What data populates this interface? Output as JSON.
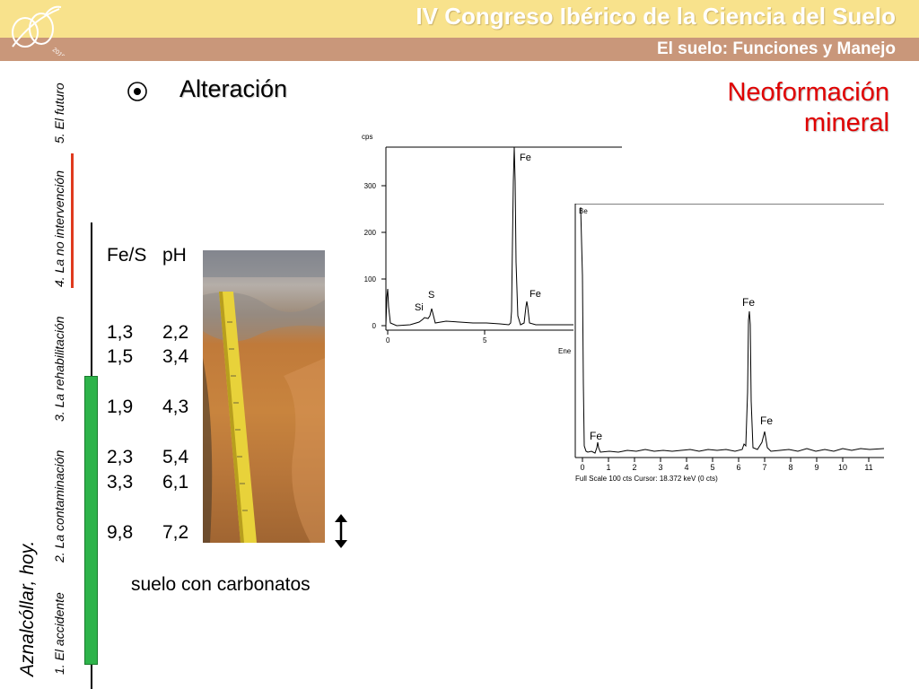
{
  "header": {
    "title": "IV Congreso Ibérico de la Ciencia del Suelo",
    "subtitle": "El suelo: Funciones y Manejo",
    "colors": {
      "band_top": "#f8e28c",
      "band_bottom": "#c9977a"
    }
  },
  "left_nav": {
    "heading": "Aznalcóllar, hoy.",
    "items": [
      "1. El accidente",
      "2. La contaminación",
      "3. La rehabilitación",
      "4. La no intervención",
      "5. El futuro"
    ],
    "colors": {
      "green_bar": "#2db34a",
      "red_line": "#e03a1e"
    }
  },
  "main": {
    "bullet_icon": "circled-dot-icon",
    "section_title": "Alteración",
    "neoformation": {
      "line1": "Neoformación",
      "line2": "mineral",
      "color": "#e00000"
    },
    "table": {
      "headers": [
        "Fe/S",
        "pH"
      ],
      "rows": [
        [
          "1,3",
          "2,2"
        ],
        [
          "1,5",
          "3,4"
        ],
        [
          "1,9",
          "4,3"
        ],
        [
          "2,3",
          "5,4"
        ],
        [
          "3,3",
          "6,1"
        ],
        [
          "9,8",
          "7,2"
        ]
      ]
    },
    "caption": "suelo con carbonatos",
    "double_arrow_icon": "up-down-arrow-icon"
  },
  "spectrum1": {
    "ylabel": "cps",
    "xlabel": "Ene",
    "yticks": [
      "0",
      "100",
      "200",
      "300"
    ],
    "xticks": [
      "0",
      "5"
    ],
    "peaks": [
      "Si",
      "S",
      "Fe",
      "Fe"
    ]
  },
  "spectrum2": {
    "corner_label": "Be",
    "peaks": [
      "Fe",
      "Fe",
      "Fe"
    ],
    "xticks": [
      "0",
      "1",
      "2",
      "3",
      "4",
      "5",
      "6",
      "7",
      "8",
      "9",
      "10",
      "11"
    ],
    "footer": "Full Scale 100 cts  Cursor: 18.372 keV (0 cts)"
  }
}
